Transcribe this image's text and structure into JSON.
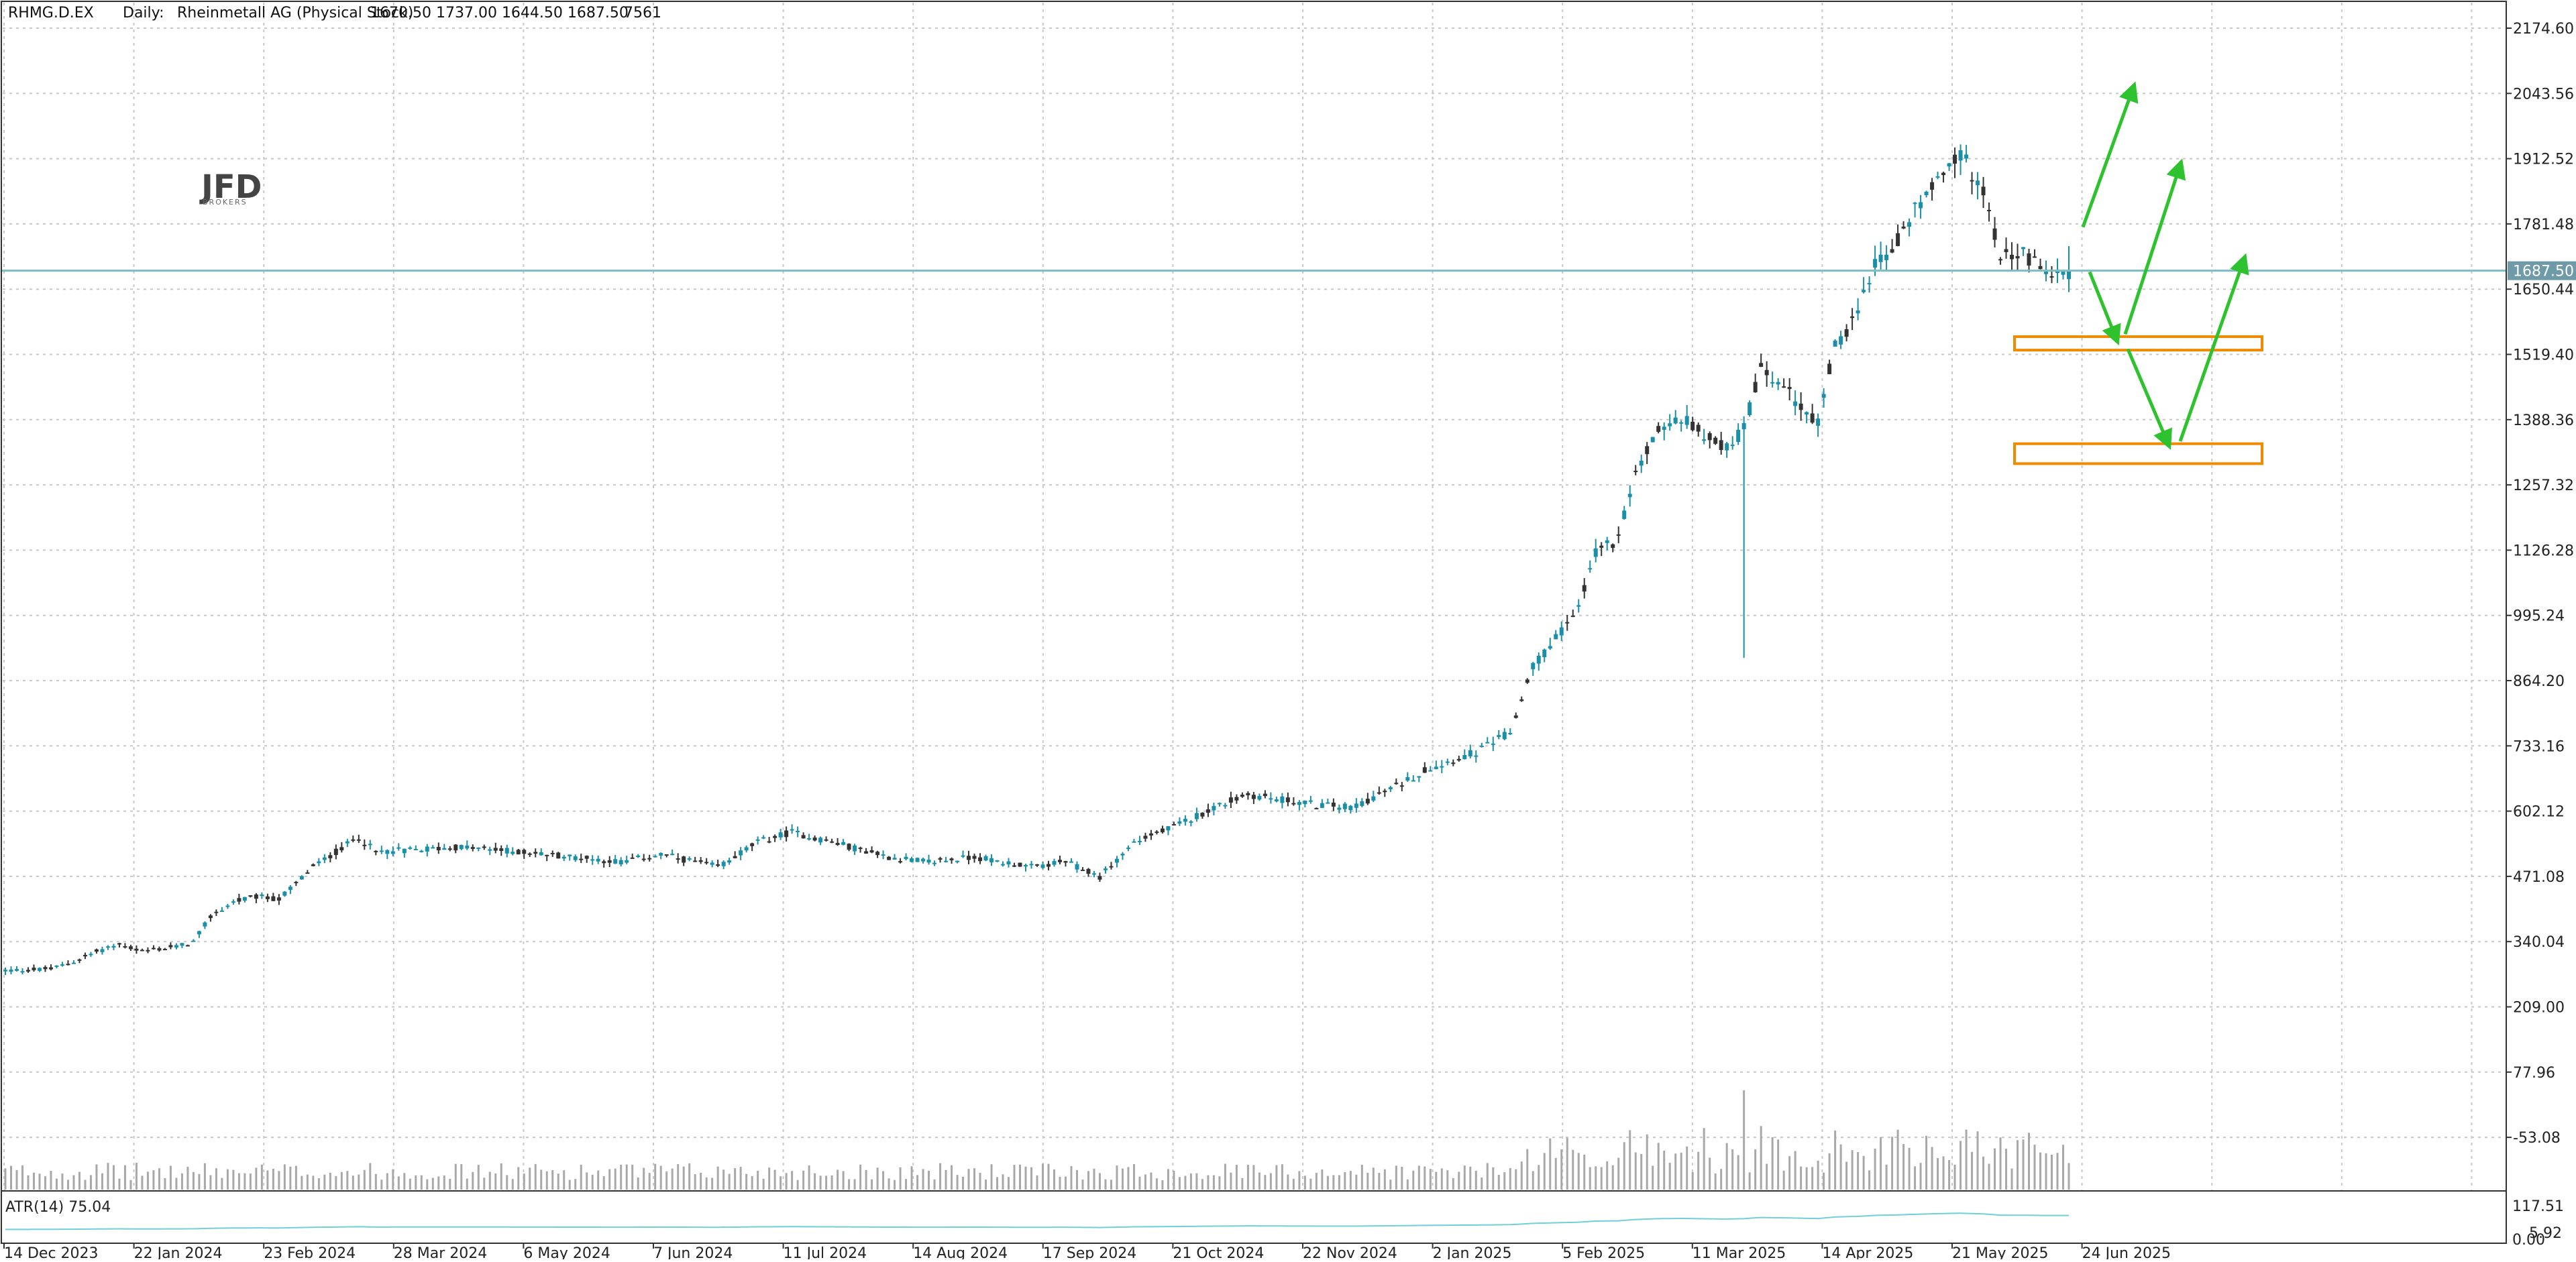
{
  "header": {
    "symbol": "RHMG.D.EX",
    "timeframe": "Daily:",
    "description": "Rheinmetall AG (Physical Stock)",
    "ohlc": "1670.50 1737.00 1644.50 1687.50",
    "volume": "7561"
  },
  "logo": {
    "text": "JFD",
    "subtext": "BROKERS"
  },
  "indicator": {
    "label": "ATR(14) 75.04",
    "axis_top": "117.51",
    "axis_bottom": "0.00",
    "axis_mid": "5.92"
  },
  "price_tag": "1687.50",
  "colors": {
    "bull": "#1b8fa8",
    "bear": "#333333",
    "hline": "#7dbcc2",
    "arrow": "#2ec22e",
    "zone": "#f08a00",
    "atr": "#6fd0d8",
    "volume": "#a8a8a8",
    "price_tag_bg": "#6f9aa8"
  },
  "chart_data": {
    "type": "candlestick",
    "symbol": "RHMG.D.EX",
    "timeframe": "Daily",
    "y_ticks": [
      "2174.60",
      "2043.56",
      "1912.52",
      "1781.48",
      "1650.44",
      "1519.40",
      "1388.36",
      "1257.32",
      "1126.28",
      "995.24",
      "864.20",
      "733.16",
      "602.12",
      "471.08",
      "340.04",
      "209.00",
      "77.96",
      "-53.08"
    ],
    "x_ticks": [
      "14 Dec 2023",
      "22 Jan 2024",
      "23 Feb 2024",
      "28 Mar 2024",
      "6 May 2024",
      "7 Jun 2024",
      "11 Jul 2024",
      "14 Aug 2024",
      "17 Sep 2024",
      "21 Oct 2024",
      "22 Nov 2024",
      "2 Jan 2025",
      "5 Feb 2025",
      "11 Mar 2025",
      "14 Apr 2025",
      "21 May 2025",
      "24 Jun 2025"
    ],
    "ylim": [
      -80,
      2190
    ],
    "current_price": 1687.5,
    "price_path": [
      [
        0,
        282
      ],
      [
        8,
        285
      ],
      [
        12,
        300
      ],
      [
        16,
        320
      ],
      [
        20,
        335
      ],
      [
        24,
        320
      ],
      [
        30,
        330
      ],
      [
        33,
        340
      ],
      [
        36,
        390
      ],
      [
        40,
        420
      ],
      [
        44,
        430
      ],
      [
        48,
        425
      ],
      [
        54,
        490
      ],
      [
        58,
        520
      ],
      [
        62,
        550
      ],
      [
        65,
        520
      ],
      [
        72,
        525
      ],
      [
        80,
        530
      ],
      [
        90,
        520
      ],
      [
        100,
        510
      ],
      [
        108,
        500
      ],
      [
        115,
        515
      ],
      [
        125,
        490
      ],
      [
        132,
        540
      ],
      [
        138,
        560
      ],
      [
        145,
        540
      ],
      [
        155,
        510
      ],
      [
        162,
        500
      ],
      [
        170,
        510
      ],
      [
        180,
        490
      ],
      [
        186,
        500
      ],
      [
        192,
        470
      ],
      [
        198,
        540
      ],
      [
        205,
        570
      ],
      [
        212,
        610
      ],
      [
        218,
        635
      ],
      [
        224,
        625
      ],
      [
        230,
        615
      ],
      [
        236,
        610
      ],
      [
        242,
        640
      ],
      [
        250,
        690
      ],
      [
        258,
        720
      ],
      [
        264,
        760
      ],
      [
        268,
        890
      ],
      [
        272,
        950
      ],
      [
        276,
        1010
      ],
      [
        279,
        1120
      ],
      [
        283,
        1150
      ],
      [
        286,
        1280
      ],
      [
        290,
        1370
      ],
      [
        294,
        1390
      ],
      [
        298,
        1360
      ],
      [
        302,
        1330
      ],
      [
        305,
        1370
      ],
      [
        308,
        1490
      ],
      [
        314,
        1430
      ],
      [
        318,
        1380
      ],
      [
        321,
        1540
      ],
      [
        325,
        1600
      ],
      [
        328,
        1700
      ],
      [
        332,
        1750
      ],
      [
        336,
        1830
      ],
      [
        340,
        1890
      ],
      [
        343,
        1920
      ],
      [
        347,
        1850
      ],
      [
        350,
        1720
      ],
      [
        354,
        1720
      ],
      [
        358,
        1690
      ],
      [
        362,
        1687.5
      ]
    ],
    "extremes": {
      "wick_low": 910,
      "wick_low_index": 305,
      "high": 1935,
      "high_index": 342
    },
    "last_candle": {
      "open": 1670.5,
      "high": 1737.0,
      "low": 1644.5,
      "close": 1687.5,
      "volume": 7561
    },
    "horizontal_line": 1687.5,
    "support_zones": [
      {
        "low": 1528,
        "high": 1555
      },
      {
        "low": 1300,
        "high": 1340
      }
    ],
    "projection_arrows": [
      {
        "from": 1775,
        "to": 2055
      },
      {
        "from": 1685,
        "to": 1550
      },
      {
        "from": 1560,
        "to": 1900
      },
      {
        "from": 1530,
        "to": 1340
      },
      {
        "from": 1345,
        "to": 1710
      }
    ],
    "indicator": {
      "name": "ATR(14)",
      "value": 75.04
    }
  }
}
